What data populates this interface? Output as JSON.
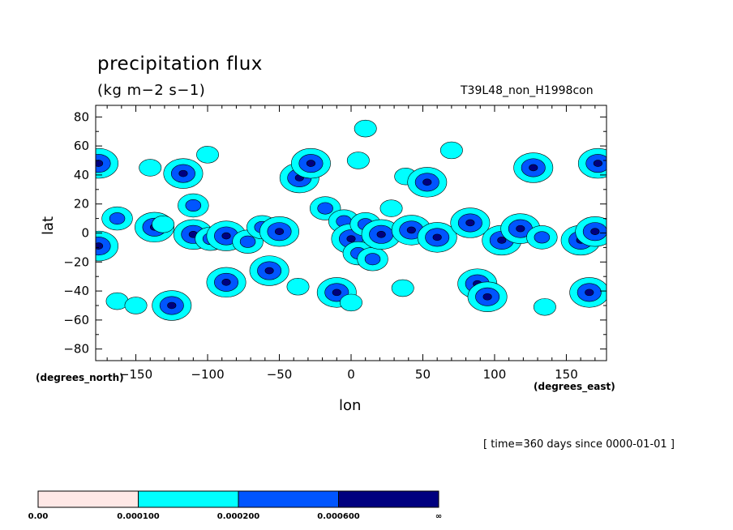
{
  "chart_data": {
    "type": "heatmap",
    "title": "precipitation flux",
    "units": "(kg m−2 s−1)",
    "run_label": "T39L48_non_H1998con",
    "time_label": "[ time=360 days since 0000-01-01 ]",
    "xlabel": "lon",
    "ylabel": "lat",
    "x_units_label": "(degrees_east)",
    "y_units_label": "(degrees_north)",
    "xlim": [
      -178,
      178
    ],
    "ylim": [
      -88,
      88
    ],
    "xticks": [
      -150,
      -100,
      -50,
      0,
      50,
      100,
      150
    ],
    "xtick_labels": [
      "−150",
      "−100",
      "−50",
      "0",
      "50",
      "100",
      "150"
    ],
    "yticks": [
      80,
      60,
      40,
      20,
      0,
      -20,
      -40,
      -60,
      -80
    ],
    "ytick_labels": [
      "80",
      "60",
      "40",
      "20",
      "0",
      "−20",
      "−40",
      "−60",
      "−80"
    ],
    "levels": [
      0.0,
      0.0001,
      0.0002,
      0.0006
    ],
    "colorbar": {
      "labels": [
        "0.00",
        "0.000100",
        "0.000200",
        "0.000600",
        "∞"
      ],
      "colors": [
        "#ffe8e6",
        "#00ffff",
        "#0055ff",
        "#00007f"
      ]
    },
    "features": [
      {
        "lon": -176,
        "lat": 48,
        "level": 3
      },
      {
        "lon": -176,
        "lat": -9,
        "level": 3
      },
      {
        "lon": -163,
        "lat": 10,
        "level": 2
      },
      {
        "lon": -163,
        "lat": -47,
        "level": 1
      },
      {
        "lon": -150,
        "lat": -50,
        "level": 1
      },
      {
        "lon": -140,
        "lat": 45,
        "level": 1
      },
      {
        "lon": -137,
        "lat": 4,
        "level": 3
      },
      {
        "lon": -131,
        "lat": 6,
        "level": 1
      },
      {
        "lon": -125,
        "lat": -50,
        "level": 3
      },
      {
        "lon": -117,
        "lat": 41,
        "level": 3
      },
      {
        "lon": -110,
        "lat": 19,
        "level": 2
      },
      {
        "lon": -110,
        "lat": -1,
        "level": 3
      },
      {
        "lon": -100,
        "lat": 54,
        "level": 1
      },
      {
        "lon": -98,
        "lat": -4,
        "level": 2
      },
      {
        "lon": -87,
        "lat": -2,
        "level": 3
      },
      {
        "lon": -87,
        "lat": -34,
        "level": 3
      },
      {
        "lon": -72,
        "lat": -6,
        "level": 2
      },
      {
        "lon": -62,
        "lat": 4,
        "level": 2
      },
      {
        "lon": -57,
        "lat": -26,
        "level": 3
      },
      {
        "lon": -50,
        "lat": 1,
        "level": 3
      },
      {
        "lon": -36,
        "lat": 38,
        "level": 3
      },
      {
        "lon": -28,
        "lat": 48,
        "level": 3
      },
      {
        "lon": -37,
        "lat": -37,
        "level": 1
      },
      {
        "lon": -18,
        "lat": 17,
        "level": 2
      },
      {
        "lon": -10,
        "lat": -41,
        "level": 3
      },
      {
        "lon": -5,
        "lat": 8,
        "level": 2
      },
      {
        "lon": 0,
        "lat": -4,
        "level": 3
      },
      {
        "lon": 5,
        "lat": -14,
        "level": 2
      },
      {
        "lon": 5,
        "lat": 50,
        "level": 1
      },
      {
        "lon": 10,
        "lat": 72,
        "level": 1
      },
      {
        "lon": 0,
        "lat": -48,
        "level": 1
      },
      {
        "lon": 10,
        "lat": 6,
        "level": 2
      },
      {
        "lon": 15,
        "lat": -18,
        "level": 2
      },
      {
        "lon": 21,
        "lat": -1,
        "level": 3
      },
      {
        "lon": 28,
        "lat": 17,
        "level": 1
      },
      {
        "lon": 36,
        "lat": -38,
        "level": 1
      },
      {
        "lon": 38,
        "lat": 39,
        "level": 1
      },
      {
        "lon": 42,
        "lat": 2,
        "level": 3
      },
      {
        "lon": 53,
        "lat": 35,
        "level": 3
      },
      {
        "lon": 60,
        "lat": -3,
        "level": 3
      },
      {
        "lon": 70,
        "lat": 57,
        "level": 1
      },
      {
        "lon": 83,
        "lat": 7,
        "level": 3
      },
      {
        "lon": 88,
        "lat": -35,
        "level": 3
      },
      {
        "lon": 95,
        "lat": -44,
        "level": 3
      },
      {
        "lon": 105,
        "lat": -5,
        "level": 3
      },
      {
        "lon": 118,
        "lat": 3,
        "level": 3
      },
      {
        "lon": 127,
        "lat": 45,
        "level": 3
      },
      {
        "lon": 133,
        "lat": -3,
        "level": 2
      },
      {
        "lon": 135,
        "lat": -51,
        "level": 1
      },
      {
        "lon": 160,
        "lat": -5,
        "level": 3
      },
      {
        "lon": 166,
        "lat": -41,
        "level": 3
      },
      {
        "lon": 170,
        "lat": 1,
        "level": 3
      },
      {
        "lon": 172,
        "lat": 48,
        "level": 3
      }
    ]
  }
}
